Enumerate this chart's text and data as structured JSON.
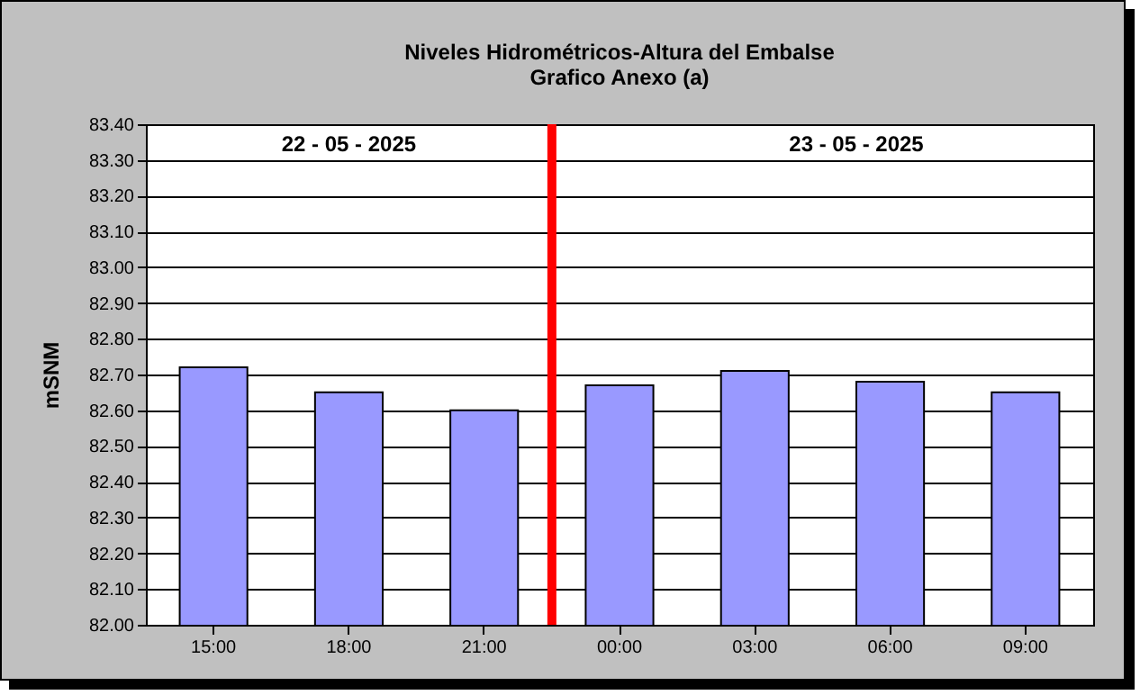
{
  "chart_data": {
    "type": "bar",
    "title": "Niveles Hidrométricos-Altura del Embalse",
    "subtitle": "Grafico Anexo (a)",
    "ylabel": "mSNM",
    "categories": [
      "15:00",
      "18:00",
      "21:00",
      "00:00",
      "03:00",
      "06:00",
      "09:00"
    ],
    "values": [
      82.72,
      82.65,
      82.6,
      82.67,
      82.71,
      82.68,
      82.65
    ],
    "color": "#9999ff",
    "ylim": [
      82.0,
      83.4
    ],
    "yticks": [
      {
        "value": 82.0,
        "label": "82.00"
      },
      {
        "value": 82.1,
        "label": "82.10"
      },
      {
        "value": 82.2,
        "label": "82.20"
      },
      {
        "value": 82.3,
        "label": "82.30"
      },
      {
        "value": 82.4,
        "label": "82.40"
      },
      {
        "value": 82.5,
        "label": "82.50"
      },
      {
        "value": 82.6,
        "label": "82.60"
      },
      {
        "value": 82.7,
        "label": "82.70"
      },
      {
        "value": 82.8,
        "label": "82.80"
      },
      {
        "value": 82.9,
        "label": "82.90"
      },
      {
        "value": 83.0,
        "label": "83.00"
      },
      {
        "value": 83.1,
        "label": "83.10"
      },
      {
        "value": 83.2,
        "label": "83.20"
      },
      {
        "value": 83.3,
        "label": "83.30"
      },
      {
        "value": 83.4,
        "label": "83.40"
      }
    ],
    "grid": "y",
    "ref_lines": [
      {
        "axis": "x",
        "value": "00:00",
        "color": "#ff0000"
      }
    ],
    "annotations": [
      "22 - 05 - 2025",
      "23 - 05 - 2025"
    ]
  }
}
